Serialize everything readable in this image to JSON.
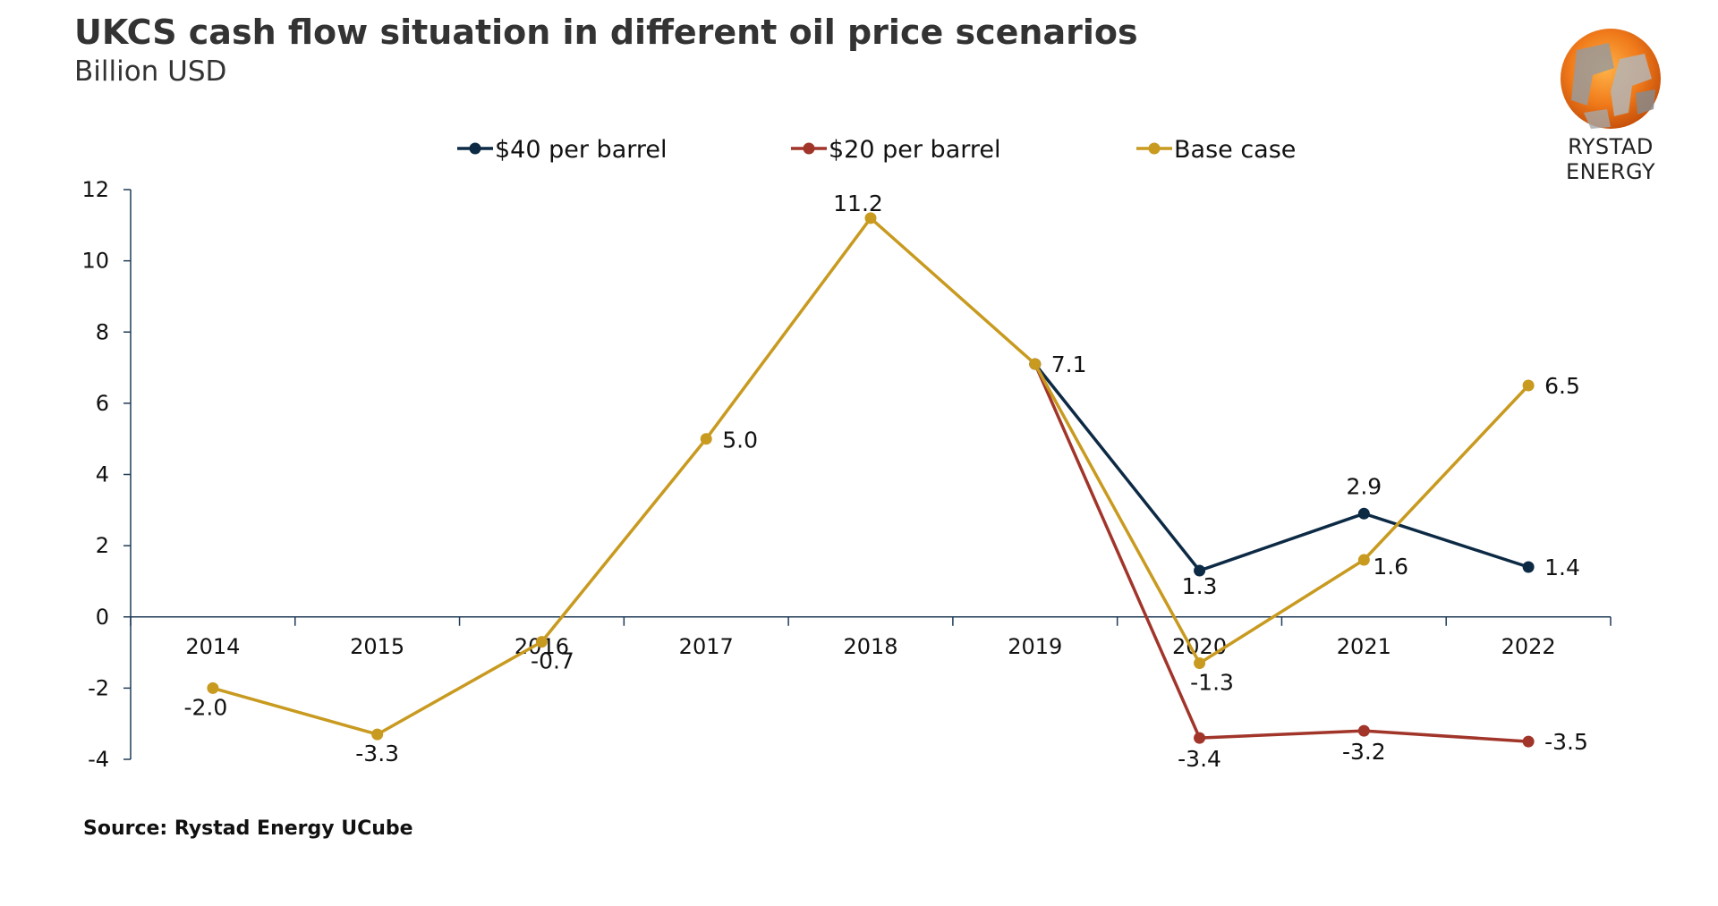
{
  "header": {
    "title": "UKCS cash flow situation in different oil price scenarios",
    "subtitle": "Billion USD"
  },
  "source": "Source: Rystad Energy UCube",
  "logo": {
    "text": "RYSTAD ENERGY"
  },
  "colors": {
    "s40": "#0d2a45",
    "s20": "#a1352a",
    "base": "#c89a1f",
    "axis": "#1f3b57"
  },
  "chart_data": {
    "type": "line",
    "title": "UKCS cash flow situation in different oil price scenarios",
    "ylabel": "Billion USD",
    "ylim": [
      -4,
      12
    ],
    "yticks": [
      "-4",
      "-2",
      "0",
      "2",
      "4",
      "6",
      "8",
      "10",
      "12"
    ],
    "categories": [
      "2014",
      "2015",
      "2016",
      "2017",
      "2018",
      "2019",
      "2020",
      "2021",
      "2022"
    ],
    "legend_position": "top",
    "series": [
      {
        "name": "$40 per barrel",
        "color": "#0d2a45",
        "values": [
          null,
          null,
          null,
          null,
          null,
          7.1,
          1.3,
          2.9,
          1.4
        ],
        "labels": [
          "",
          "",
          "",
          "",
          "",
          "",
          "1.3",
          "2.9",
          "1.4"
        ]
      },
      {
        "name": "$20 per barrel",
        "color": "#a1352a",
        "values": [
          null,
          null,
          null,
          null,
          null,
          7.1,
          -3.4,
          -3.2,
          -3.5
        ],
        "labels": [
          "",
          "",
          "",
          "",
          "",
          "",
          "-3.4",
          "-3.2",
          "-3.5"
        ]
      },
      {
        "name": "Base case",
        "color": "#c89a1f",
        "values": [
          -2.0,
          -3.3,
          -0.7,
          5.0,
          11.2,
          7.1,
          -1.3,
          1.6,
          6.5
        ],
        "labels": [
          "-2.0",
          "-3.3",
          "-0.7",
          "5.0",
          "11.2",
          "7.1",
          "-1.3",
          "1.6",
          "6.5"
        ]
      }
    ]
  }
}
